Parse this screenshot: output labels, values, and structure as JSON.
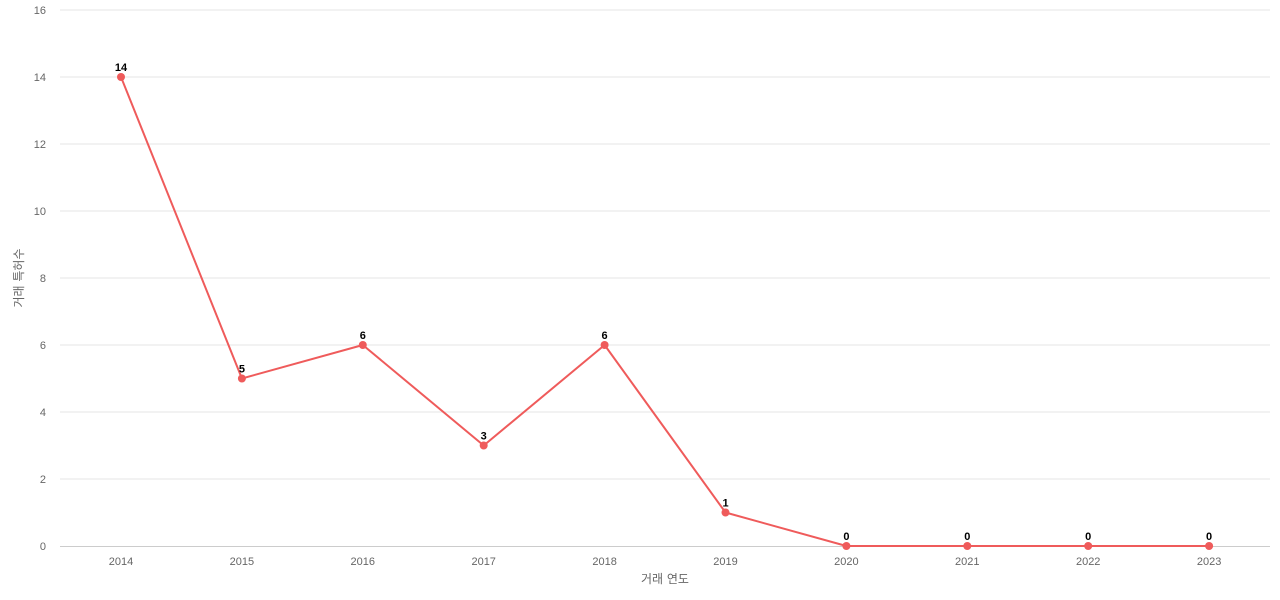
{
  "chart_data": {
    "type": "line",
    "title": "",
    "xlabel": "거래 연도",
    "ylabel": "거래 특허수",
    "categories": [
      "2014",
      "2015",
      "2016",
      "2017",
      "2018",
      "2019",
      "2020",
      "2021",
      "2022",
      "2023"
    ],
    "series": [
      {
        "values": [
          14,
          5,
          6,
          3,
          6,
          1,
          0,
          0,
          0,
          0
        ],
        "color": "#ef5b5b"
      }
    ],
    "ylim": [
      0,
      16
    ],
    "yticks": [
      "0",
      "2",
      "4",
      "6",
      "8",
      "10",
      "12",
      "14",
      "16"
    ],
    "grid": true,
    "legend": "none",
    "data_labels": true
  }
}
